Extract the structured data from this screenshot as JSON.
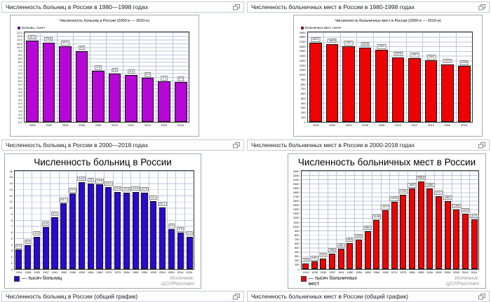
{
  "captions": {
    "left_top": "Численность больниц в России в 1980—1998 годах",
    "left_mid": "Численность больниц в России в 2000—2018 годах",
    "left_bottom": "Численность больниц в России (общий график)",
    "right_top": "Численность больничных мест в России в 1980-1998 годах",
    "right_mid": "Численность больничных мест в России в 2000-2018 годах",
    "right_bottom": "Численность больничных мест в России (общий график)"
  },
  "colors": {
    "hospitals_recent_bar": "#b507d6",
    "beds_bar": "#ee0202",
    "hospitals_history_bar": "#2c08d2",
    "grid": "#b9c6da"
  },
  "chart_data": [
    {
      "id": "hospitals-2000s",
      "type": "bar",
      "layout": "small",
      "title": "Численность больниц в России (2000-е — 2010-е)",
      "legend": "Больниц, тысяч",
      "bar_color": "#b507d6",
      "grid_color": "#b9c6da",
      "categories": [
        "2000",
        "2002",
        "2004",
        "2006",
        "2008",
        "2010",
        "2012",
        "2014",
        "2016",
        "2018"
      ],
      "values": [
        10.9,
        10.6,
        10.1,
        9.5,
        6.8,
        6.5,
        6.3,
        5.9,
        5.4,
        5.3
      ],
      "ylim": [
        0,
        12
      ],
      "ystep": 0.5,
      "ytick_decimals": 1
    },
    {
      "id": "beds-2000s",
      "type": "bar",
      "layout": "small",
      "title": "Численность больничных мест в России (2000-е — 2010-е)",
      "legend": "Больничных мест, тысяч",
      "bar_color": "#ee0202",
      "grid_color": "#b9c6da",
      "categories": [
        "2000",
        "2002",
        "2004",
        "2006",
        "2008",
        "2010",
        "2012",
        "2014",
        "2016",
        "2018"
      ],
      "values": [
        1672,
        1653,
        1597,
        1575,
        1522,
        1373,
        1347,
        1302,
        1222,
        1183
      ],
      "ylim": [
        0,
        1900
      ],
      "ystep": 100,
      "ytick_decimals": 0
    },
    {
      "id": "hospitals-history",
      "type": "bar",
      "layout": "large",
      "title": "Численность больниц в России",
      "legend": "— тысяч больниц",
      "bar_color": "#2c08d2",
      "grid_color": "#b9c6da",
      "categories": [
        "1914",
        "1928",
        "1932",
        "1937",
        "1941",
        "1950",
        "1954",
        "1959",
        "1964",
        "1969",
        "1974",
        "1979",
        "1984",
        "1989",
        "1994",
        "1999",
        "2004",
        "2009",
        "2014",
        "2019"
      ],
      "values": [
        3.2,
        3.9,
        5.3,
        6.9,
        8.5,
        10.7,
        12.3,
        14.2,
        14,
        13.8,
        13.4,
        12.6,
        12.5,
        12.6,
        12.5,
        11.1,
        10.1,
        6.5,
        5.9,
        5.3
      ],
      "ylim": [
        0,
        16
      ],
      "ystep": 1,
      "ytick_decimals": 0,
      "source_lines": [
        "Источник:",
        "ЦСУ/Росстат"
      ]
    },
    {
      "id": "beds-history",
      "type": "bar",
      "layout": "large",
      "title": "Численность больничных мест в России",
      "legend": "— тысяч больничных мест",
      "bar_color": "#ee0202",
      "grid_color": "#b9c6da",
      "categories": [
        "1914",
        "1928",
        "1932",
        "1937",
        "1941",
        "1950",
        "1954",
        "1959",
        "1964",
        "1969",
        "1974",
        "1979",
        "1984",
        "1989",
        "1994",
        "1999",
        "2004",
        "2009",
        "2014",
        "2019"
      ],
      "values": [
        133,
        180,
        247,
        365,
        482,
        610,
        693,
        890,
        1145,
        1377,
        1576,
        1742,
        1887,
        2054,
        1890,
        1717,
        1597,
        1399,
        1302,
        1173
      ],
      "ylim": [
        0,
        2300
      ],
      "ystep": 100,
      "ytick_decimals": 0,
      "source_lines": [
        "Источник:",
        "ЦСУ/Росстат"
      ]
    }
  ]
}
